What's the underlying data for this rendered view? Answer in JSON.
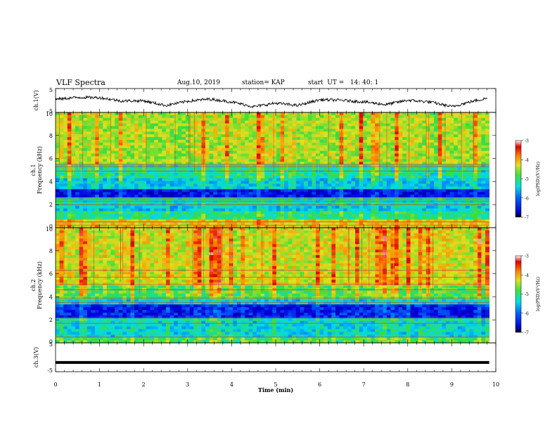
{
  "header": {
    "title": "VLF Spectra",
    "date": "Aug.10, 2019",
    "station": "station= KAP",
    "start": "start  UT =   14: 40: 1"
  },
  "chart_data": [
    {
      "type": "line",
      "panel": "ch1-waveform",
      "ylabel": "ch.1(V)",
      "ylim": [
        -5,
        5
      ],
      "yticks": [
        "5",
        "-5"
      ],
      "x": [
        0,
        0.5,
        1.0,
        1.5,
        2.0,
        2.5,
        3.0,
        3.5,
        4.0,
        4.5,
        5.0,
        5.5,
        6.0,
        6.5,
        7.0,
        7.5,
        8.0,
        8.5,
        9.0,
        9.5,
        9.8
      ],
      "values": [
        0.5,
        1.3,
        1.2,
        -0.2,
        -0.1,
        -2.1,
        -0.3,
        0.6,
        -0.6,
        -2.6,
        -1.1,
        -2.1,
        0.3,
        0.1,
        -0.6,
        -1.7,
        0.1,
        -0.6,
        -2.6,
        -0.2,
        0.9
      ]
    },
    {
      "type": "heatmap",
      "panel": "ch1-spectrogram",
      "ylabel": "ch.1\nFrequency (kHz)",
      "ylim": [
        0,
        10
      ],
      "yticks": [
        "0",
        "2",
        "4",
        "6",
        "8",
        "10"
      ],
      "colorbar": {
        "label": "log(PSD)(V²/Hz)",
        "range": [
          -7,
          -3
        ],
        "ticks": [
          "-3",
          "-4",
          "-5",
          "-6",
          "-7"
        ]
      },
      "lines_khz": [
        0.2,
        0.5,
        2.0,
        2.3,
        2.5,
        4.9,
        5.3,
        5.5
      ]
    },
    {
      "type": "heatmap",
      "panel": "ch2-spectrogram",
      "ylabel": "ch.2\nFrequency (kHz)",
      "ylim": [
        0,
        10
      ],
      "yticks": [
        "0",
        "2",
        "4",
        "6",
        "8",
        "10"
      ],
      "colorbar": {
        "label": "log(PSD)(V²/Hz)",
        "range": [
          -7,
          -3
        ],
        "ticks": [
          "-3",
          "-4",
          "-5",
          "-6",
          "-7"
        ]
      },
      "lines_khz": [
        0.5,
        1.7,
        2.2,
        3.5,
        3.9,
        4.6,
        5.1,
        5.7,
        6.3
      ]
    },
    {
      "type": "line",
      "panel": "ch3-waveform",
      "ylabel": "ch.3(V)",
      "ylim": [
        -5,
        5
      ],
      "yticks": [
        "5",
        "-5"
      ],
      "x": [
        0,
        9.85
      ],
      "values": [
        -1.8,
        -1.8
      ]
    }
  ],
  "xaxis": {
    "label": "Time (min)",
    "ticks": [
      "0",
      "1",
      "2",
      "3",
      "4",
      "5",
      "6",
      "7",
      "8",
      "9",
      "10"
    ],
    "xlim": [
      0,
      10
    ]
  }
}
